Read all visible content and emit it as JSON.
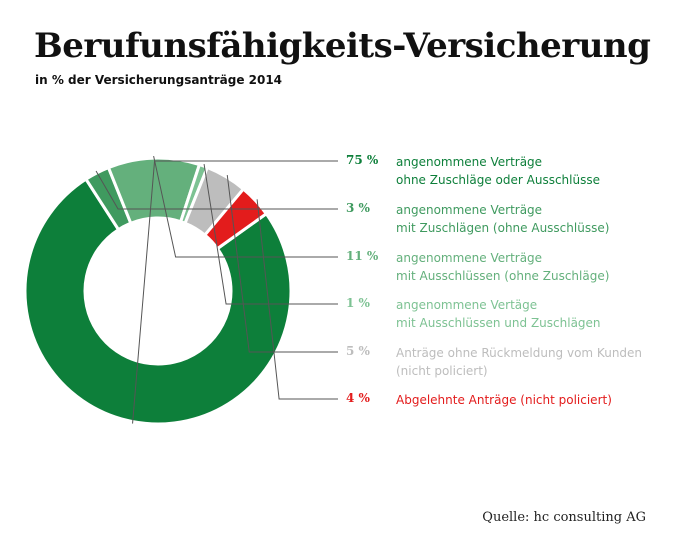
{
  "title": "Berufunsfähigkeits-Versicherung",
  "subtitle": "in % der Versicherungsanträge 2014",
  "source": "Quelle: hc consulting AG",
  "chart_data": {
    "type": "pie",
    "variant": "donut",
    "title": "Berufunsfähigkeits-Versicherung",
    "subtitle": "in % der Versicherungsanträge 2014",
    "legend_position": "right",
    "slices": [
      {
        "value": 75,
        "label_pct": "75 %",
        "label_lines": [
          "angenommene Verträge",
          "ohne Zuschläge oder Ausschlüsse"
        ],
        "color": "#0d7f3a"
      },
      {
        "value": 3,
        "label_pct": "3 %",
        "label_lines": [
          "angenommene Verträge",
          "mit Zuschlägen (ohne Ausschlüsse)"
        ],
        "color": "#3f9a5f"
      },
      {
        "value": 11,
        "label_pct": "11 %",
        "label_lines": [
          "angenommene Verträge",
          "mit Ausschlüssen (ohne Zuschläge)"
        ],
        "color": "#64b07c"
      },
      {
        "value": 1,
        "label_pct": "1 %",
        "label_lines": [
          "angenommene Vertäge",
          "mit Ausschlüssen und Zuschlägen"
        ],
        "color": "#7dc293"
      },
      {
        "value": 5,
        "label_pct": "5 %",
        "label_lines": [
          "Anträge ohne Rückmeldung vom Kunden",
          "(nicht policiert)"
        ],
        "color": "#bdbdbd"
      },
      {
        "value": 4,
        "label_pct": "4 %",
        "label_lines": [
          "Abgelehnte Anträge (nicht policiert)"
        ],
        "color": "#e31c1c"
      }
    ]
  }
}
